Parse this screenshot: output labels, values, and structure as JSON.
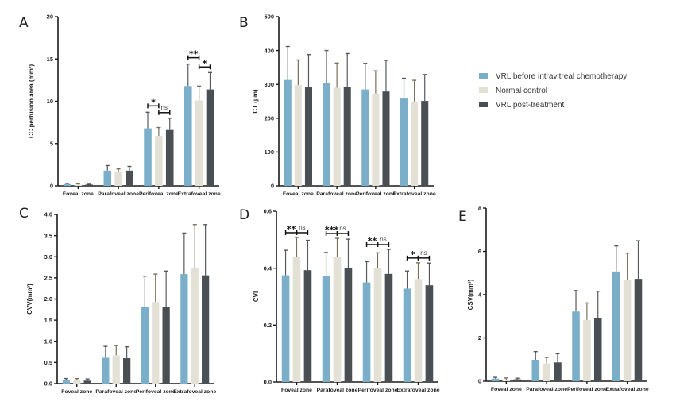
{
  "colors": {
    "vrl_before": "#7aaec9",
    "normal": "#e3e0d6",
    "vrl_post": "#4a4f53",
    "axis": "#1a1a1a",
    "errorbar": "#444444"
  },
  "legend": {
    "position": "right, between top panels",
    "entries": [
      {
        "label": "VRL before intravitreal chemotherapy",
        "color": "#7aaec9"
      },
      {
        "label": "Normal  control",
        "color": "#e3e0d6"
      },
      {
        "label": "VRL post-treatment",
        "color": "#4a4f53"
      }
    ]
  },
  "chart_data": [
    {
      "panel": "A",
      "type": "bar",
      "title": "",
      "xlabel": "",
      "ylabel": "CC perfusion area (mm²)",
      "ylim": [
        0,
        20
      ],
      "yticks": [
        "0",
        "5",
        "10",
        "15",
        "20"
      ],
      "ytick_values": [
        0,
        5,
        10,
        15,
        20
      ],
      "grid": false,
      "categories": [
        "Foveal zone",
        "Parafoveal zone",
        "Perifoveal zone",
        "Extrafoveal zone"
      ],
      "series": [
        {
          "name": "VRL before intravitreal chemotherapy",
          "values": [
            0.2,
            1.8,
            6.8,
            11.8
          ],
          "error_upper": [
            0.3,
            2.4,
            8.7,
            14.4
          ]
        },
        {
          "name": "Normal  control",
          "values": [
            0.15,
            1.6,
            5.9,
            10.1
          ],
          "error_upper": [
            0.25,
            2.0,
            6.9,
            11.8
          ]
        },
        {
          "name": "VRL post-treatment",
          "values": [
            0.15,
            1.8,
            6.6,
            11.4
          ],
          "error_upper": [
            0.2,
            2.3,
            8.0,
            13.4
          ]
        }
      ],
      "significance": [
        {
          "category": 2,
          "pair": [
            0,
            1
          ],
          "label": "*"
        },
        {
          "category": 2,
          "pair": [
            1,
            2
          ],
          "label": "ns"
        },
        {
          "category": 3,
          "pair": [
            0,
            1
          ],
          "label": "**"
        },
        {
          "category": 3,
          "pair": [
            1,
            2
          ],
          "label": "*"
        }
      ]
    },
    {
      "panel": "B",
      "type": "bar",
      "title": "",
      "xlabel": "",
      "ylabel": "CT (μm)",
      "ylim": [
        0,
        500
      ],
      "yticks": [
        "0",
        "100",
        "200",
        "300",
        "400",
        "500"
      ],
      "ytick_values": [
        0,
        100,
        200,
        300,
        400,
        500
      ],
      "grid": false,
      "categories": [
        "Foveal zone",
        "Parafoveal zone",
        "Perifoveal zone",
        "Extrafoveal zone"
      ],
      "series": [
        {
          "name": "VRL before intravitreal chemotherapy",
          "values": [
            313,
            305,
            285,
            258
          ],
          "error_upper": [
            412,
            400,
            362,
            318
          ]
        },
        {
          "name": "Normal  control",
          "values": [
            298,
            290,
            273,
            249
          ],
          "error_upper": [
            372,
            363,
            340,
            312
          ]
        },
        {
          "name": "VRL post-treatment",
          "values": [
            291,
            292,
            279,
            251
          ],
          "error_upper": [
            388,
            391,
            371,
            329
          ]
        }
      ],
      "significance": []
    },
    {
      "panel": "C",
      "type": "bar",
      "title": "",
      "xlabel": "",
      "ylabel": "CVV(mm³)",
      "ylim": [
        0,
        4
      ],
      "yticks": [
        "0.0",
        "0.5",
        "1.0",
        "1.5",
        "2.0",
        "2.5",
        "3.0",
        "3.5",
        "4.0"
      ],
      "ytick_values": [
        0,
        0.5,
        1,
        1.5,
        2,
        2.5,
        3,
        3.5,
        4
      ],
      "grid": false,
      "categories": [
        "Foveal zone",
        "Parafoveal zone",
        "Perifoveal zone",
        "Extrafoveal zone"
      ],
      "series": [
        {
          "name": "VRL before intravitreal chemotherapy",
          "values": [
            0.08,
            0.61,
            1.81,
            2.59
          ],
          "error_upper": [
            0.12,
            0.88,
            2.54,
            3.56
          ]
        },
        {
          "name": "Normal  control",
          "values": [
            0.08,
            0.67,
            1.93,
            2.74
          ],
          "error_upper": [
            0.12,
            0.9,
            2.59,
            3.76
          ]
        },
        {
          "name": "VRL post-treatment",
          "values": [
            0.07,
            0.6,
            1.82,
            2.56
          ],
          "error_upper": [
            0.11,
            0.87,
            2.66,
            3.76
          ]
        }
      ],
      "significance": []
    },
    {
      "panel": "D",
      "type": "bar",
      "title": "",
      "xlabel": "",
      "ylabel": "CVI",
      "ylim": [
        0,
        0.6
      ],
      "yticks": [
        "0.0",
        "0.2",
        "0.4",
        "0.6"
      ],
      "ytick_values": [
        0,
        0.2,
        0.4,
        0.6
      ],
      "grid": false,
      "categories": [
        "Foveal zone",
        "Parafoveal zone",
        "Perifoveal zone",
        "Extrafoveal zone"
      ],
      "series": [
        {
          "name": "VRL before intravitreal chemotherapy",
          "values": [
            0.375,
            0.371,
            0.35,
            0.328
          ],
          "error_upper": [
            0.463,
            0.455,
            0.423,
            0.39
          ]
        },
        {
          "name": "Normal  control",
          "values": [
            0.44,
            0.44,
            0.4,
            0.362
          ],
          "error_upper": [
            0.508,
            0.505,
            0.454,
            0.419
          ]
        },
        {
          "name": "VRL post-treatment",
          "values": [
            0.393,
            0.402,
            0.38,
            0.34
          ],
          "error_upper": [
            0.498,
            0.502,
            0.466,
            0.418
          ]
        }
      ],
      "significance": [
        {
          "category": 0,
          "pair": [
            0,
            1
          ],
          "label": "**"
        },
        {
          "category": 0,
          "pair": [
            1,
            2
          ],
          "label": "ns"
        },
        {
          "category": 1,
          "pair": [
            0,
            1
          ],
          "label": "***"
        },
        {
          "category": 1,
          "pair": [
            1,
            2
          ],
          "label": "ns"
        },
        {
          "category": 2,
          "pair": [
            0,
            1
          ],
          "label": "**"
        },
        {
          "category": 2,
          "pair": [
            1,
            2
          ],
          "label": "ns"
        },
        {
          "category": 3,
          "pair": [
            0,
            1
          ],
          "label": "*"
        },
        {
          "category": 3,
          "pair": [
            1,
            2
          ],
          "label": "ns"
        }
      ]
    },
    {
      "panel": "E",
      "type": "bar",
      "title": "",
      "xlabel": "",
      "ylabel": "CSV(mm³)",
      "ylim": [
        0,
        8
      ],
      "yticks": [
        "0",
        "2",
        "4",
        "6",
        "8"
      ],
      "ytick_values": [
        0,
        2,
        4,
        6,
        8
      ],
      "grid": false,
      "categories": [
        "Foveal zone",
        "Parafoveal zone",
        "Perifoveal zone",
        "Extrafoveal zone"
      ],
      "series": [
        {
          "name": "VRL before intravitreal chemotherapy",
          "values": [
            0.12,
            0.99,
            3.22,
            5.07
          ],
          "error_upper": [
            0.18,
            1.37,
            4.19,
            6.25
          ]
        },
        {
          "name": "Normal  control",
          "values": [
            0.05,
            0.82,
            2.83,
            4.7
          ],
          "error_upper": [
            0.15,
            1.1,
            3.62,
            5.92
          ]
        },
        {
          "name": "VRL post-treatment",
          "values": [
            0.09,
            0.87,
            2.9,
            4.73
          ],
          "error_upper": [
            0.14,
            1.27,
            4.16,
            6.49
          ]
        }
      ],
      "significance": []
    }
  ]
}
